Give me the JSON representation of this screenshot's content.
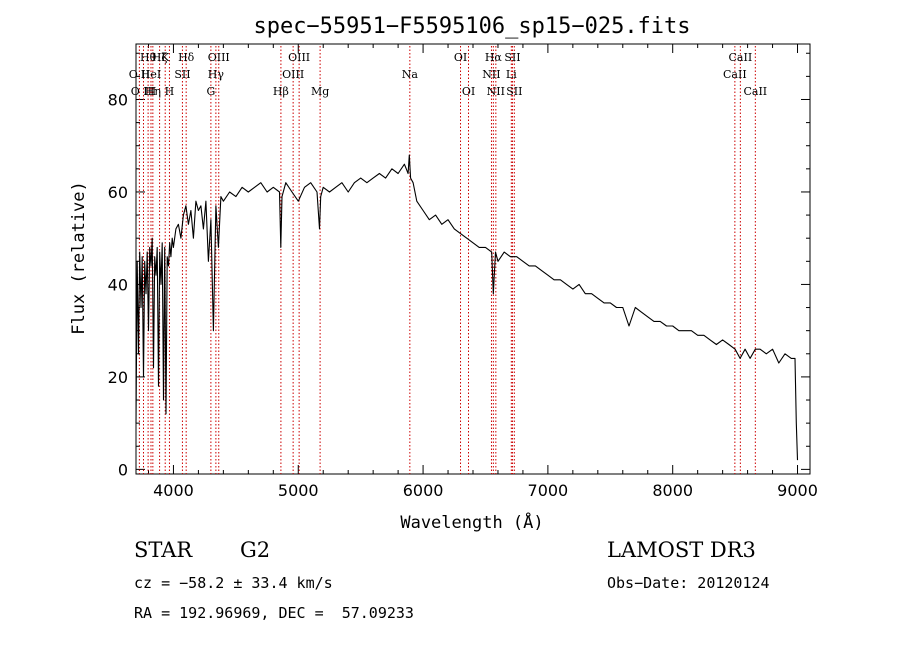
{
  "chart_data": {
    "type": "line",
    "title": "spec−55951−F5595106_sp15−025.fits",
    "xlabel": "Wavelength (Å)",
    "ylabel": "Flux (relative)",
    "xlim": [
      3700,
      9100
    ],
    "ylim": [
      -1,
      92
    ],
    "x_ticks": [
      4000,
      5000,
      6000,
      7000,
      8000,
      9000
    ],
    "y_ticks": [
      0,
      20,
      40,
      60,
      80
    ],
    "grid": false,
    "line_color": "#000000",
    "marker_color": "#cc0000",
    "series": [
      {
        "name": "flux",
        "x": [
          3700,
          3710,
          3720,
          3730,
          3740,
          3750,
          3760,
          3770,
          3780,
          3790,
          3800,
          3810,
          3820,
          3830,
          3840,
          3850,
          3860,
          3870,
          3880,
          3890,
          3900,
          3910,
          3920,
          3930,
          3940,
          3950,
          3960,
          3970,
          3980,
          3990,
          4000,
          4020,
          4040,
          4060,
          4080,
          4100,
          4120,
          4140,
          4160,
          4180,
          4200,
          4220,
          4240,
          4260,
          4280,
          4300,
          4320,
          4340,
          4360,
          4380,
          4400,
          4450,
          4500,
          4550,
          4600,
          4650,
          4700,
          4750,
          4800,
          4850,
          4860,
          4870,
          4900,
          4950,
          5000,
          5050,
          5100,
          5150,
          5170,
          5180,
          5200,
          5250,
          5300,
          5350,
          5400,
          5450,
          5500,
          5550,
          5600,
          5650,
          5700,
          5750,
          5800,
          5850,
          5880,
          5890,
          5900,
          5920,
          5950,
          6000,
          6050,
          6100,
          6150,
          6200,
          6250,
          6300,
          6350,
          6400,
          6450,
          6500,
          6550,
          6563,
          6580,
          6600,
          6650,
          6700,
          6750,
          6800,
          6850,
          6900,
          6950,
          7000,
          7050,
          7100,
          7150,
          7200,
          7250,
          7300,
          7350,
          7400,
          7450,
          7500,
          7550,
          7600,
          7650,
          7700,
          7750,
          7800,
          7850,
          7900,
          7950,
          8000,
          8050,
          8100,
          8150,
          8200,
          8250,
          8300,
          8350,
          8400,
          8450,
          8500,
          8540,
          8580,
          8620,
          8662,
          8700,
          8750,
          8800,
          8850,
          8900,
          8950,
          8980,
          8990,
          9000
        ],
        "y": [
          10,
          45,
          25,
          47,
          35,
          46,
          20,
          45,
          38,
          47,
          30,
          48,
          44,
          50,
          22,
          46,
          42,
          48,
          18,
          47,
          40,
          49,
          15,
          48,
          12,
          46,
          44,
          49,
          46,
          50,
          48,
          52,
          53,
          50,
          55,
          57,
          53,
          56,
          50,
          58,
          56,
          57,
          52,
          58,
          45,
          54,
          30,
          57,
          48,
          59,
          58,
          60,
          59,
          61,
          60,
          61,
          62,
          60,
          61,
          60,
          48,
          59,
          62,
          60,
          58,
          61,
          62,
          60,
          52,
          59,
          61,
          60,
          61,
          62,
          60,
          62,
          63,
          62,
          63,
          64,
          63,
          65,
          64,
          66,
          64,
          68,
          63,
          62,
          58,
          56,
          54,
          55,
          53,
          54,
          52,
          51,
          50,
          49,
          48,
          48,
          47,
          38,
          47,
          45,
          47,
          46,
          46,
          45,
          44,
          44,
          43,
          42,
          41,
          41,
          40,
          39,
          40,
          38,
          38,
          37,
          36,
          36,
          35,
          35,
          31,
          35,
          34,
          33,
          32,
          32,
          31,
          31,
          30,
          30,
          30,
          29,
          29,
          28,
          27,
          28,
          27,
          26,
          24,
          26,
          24,
          26,
          26,
          25,
          26,
          23,
          25,
          24,
          24,
          10,
          2
        ]
      }
    ],
    "line_markers": [
      {
        "label": "O II",
        "x": 3727,
        "row": 2
      },
      {
        "label": "O III",
        "x": 3760,
        "row": 3
      },
      {
        "label": "Hθ",
        "x": 3797,
        "row": 1
      },
      {
        "label": "HeI",
        "x": 3820,
        "row": 2
      },
      {
        "label": "Hη",
        "x": 3835,
        "row": 3
      },
      {
        "label": "Hζ",
        "x": 3889,
        "row": 1
      },
      {
        "label": "K",
        "x": 3934,
        "row": 1
      },
      {
        "label": "H",
        "x": 3968,
        "row": 3
      },
      {
        "label": "SII",
        "x": 4072,
        "row": 2
      },
      {
        "label": "Hδ",
        "x": 4102,
        "row": 1
      },
      {
        "label": "G",
        "x": 4300,
        "row": 3
      },
      {
        "label": "Hγ",
        "x": 4340,
        "row": 2
      },
      {
        "label": "OIII",
        "x": 4363,
        "row": 1
      },
      {
        "label": "Hβ",
        "x": 4861,
        "row": 3
      },
      {
        "label": "OIII",
        "x": 4959,
        "row": 2
      },
      {
        "label": "OIII",
        "x": 5007,
        "row": 1
      },
      {
        "label": "Mg",
        "x": 5175,
        "row": 3
      },
      {
        "label": "Na",
        "x": 5894,
        "row": 2
      },
      {
        "label": "OI",
        "x": 6300,
        "row": 1
      },
      {
        "label": "OI",
        "x": 6364,
        "row": 3
      },
      {
        "label": "NII",
        "x": 6548,
        "row": 2
      },
      {
        "label": "Hα",
        "x": 6563,
        "row": 1
      },
      {
        "label": "NII",
        "x": 6583,
        "row": 3
      },
      {
        "label": "Li",
        "x": 6707,
        "row": 2
      },
      {
        "label": "SII",
        "x": 6716,
        "row": 1
      },
      {
        "label": "SII",
        "x": 6731,
        "row": 3
      },
      {
        "label": "CaII",
        "x": 8498,
        "row": 2
      },
      {
        "label": "CaII",
        "x": 8542,
        "row": 1
      },
      {
        "label": "CaII",
        "x": 8662,
        "row": 3
      }
    ]
  },
  "info": {
    "class": "STAR",
    "subclass": "G2",
    "survey": "LAMOST DR3",
    "cz": "cz = −58.2 ± 33.4 km/s",
    "obs_date": "Obs−Date: 20120124",
    "coords": "RA = 192.96969, DEC =  57.09233"
  }
}
